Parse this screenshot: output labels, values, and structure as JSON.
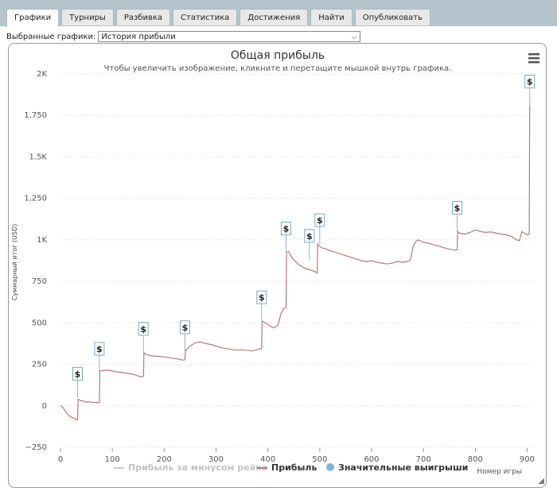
{
  "tabs": [
    {
      "label": "Графики",
      "active": true
    },
    {
      "label": "Турниры",
      "active": false
    },
    {
      "label": "Разбивка",
      "active": false
    },
    {
      "label": "Статистика",
      "active": false
    },
    {
      "label": "Достижения",
      "active": false
    },
    {
      "label": "Найти",
      "active": false
    },
    {
      "label": "Опубликовать",
      "active": false
    }
  ],
  "selector": {
    "label": "Выбранные графики:",
    "value": "История прибыли"
  },
  "colors": {
    "profit_line": "#b57a7a",
    "allin_line": "#cccccc",
    "big_win_marker": "#7cb5ec",
    "grid": "#e6e6e6"
  },
  "chart_data": {
    "type": "line",
    "title": "Общая прибыль",
    "subtitle": "Чтобы увеличить изображение, кликните и перетащите мышкой внутрь графика.",
    "xlabel": "Номер игры",
    "ylabel": "Суммарный итог (USD)",
    "xlim": [
      0,
      910
    ],
    "ylim": [
      -250,
      2000
    ],
    "x_ticks": [
      0,
      100,
      200,
      300,
      400,
      500,
      600,
      700,
      800,
      900
    ],
    "y_ticks": [
      {
        "value": -250,
        "label": "−250"
      },
      {
        "value": 0,
        "label": "0"
      },
      {
        "value": 250,
        "label": "250"
      },
      {
        "value": 500,
        "label": "500"
      },
      {
        "value": 750,
        "label": "750"
      },
      {
        "value": 1000,
        "label": "1K"
      },
      {
        "value": 1250,
        "label": "1,250"
      },
      {
        "value": 1500,
        "label": "1.5K"
      },
      {
        "value": 1750,
        "label": "1,750"
      },
      {
        "value": 2000,
        "label": "2K"
      }
    ],
    "grid": true,
    "legend_position": "bottom",
    "menu_icon": "hamburger-menu-icon",
    "series": [
      {
        "name": "Прибыль за минусом рейка",
        "visible": false,
        "values": []
      },
      {
        "name": "Прибыль",
        "visible": true,
        "points": [
          [
            0,
            0
          ],
          [
            5,
            -10
          ],
          [
            10,
            -35
          ],
          [
            15,
            -55
          ],
          [
            20,
            -65
          ],
          [
            25,
            -75
          ],
          [
            30,
            -82
          ],
          [
            33,
            -85
          ],
          [
            34,
            40
          ],
          [
            40,
            30
          ],
          [
            45,
            28
          ],
          [
            50,
            22
          ],
          [
            55,
            25
          ],
          [
            60,
            20
          ],
          [
            65,
            22
          ],
          [
            70,
            18
          ],
          [
            75,
            20
          ],
          [
            76,
            210
          ],
          [
            80,
            212
          ],
          [
            90,
            215
          ],
          [
            100,
            210
          ],
          [
            110,
            205
          ],
          [
            120,
            200
          ],
          [
            130,
            195
          ],
          [
            140,
            190
          ],
          [
            150,
            180
          ],
          [
            155,
            175
          ],
          [
            160,
            178
          ],
          [
            161,
            320
          ],
          [
            165,
            310
          ],
          [
            170,
            305
          ],
          [
            180,
            300
          ],
          [
            190,
            298
          ],
          [
            200,
            295
          ],
          [
            210,
            290
          ],
          [
            220,
            285
          ],
          [
            230,
            280
          ],
          [
            235,
            275
          ],
          [
            240,
            278
          ],
          [
            241,
            330
          ],
          [
            245,
            345
          ],
          [
            250,
            360
          ],
          [
            260,
            380
          ],
          [
            270,
            385
          ],
          [
            280,
            375
          ],
          [
            290,
            370
          ],
          [
            300,
            360
          ],
          [
            310,
            350
          ],
          [
            320,
            345
          ],
          [
            330,
            340
          ],
          [
            340,
            335
          ],
          [
            350,
            338
          ],
          [
            360,
            335
          ],
          [
            370,
            330
          ],
          [
            380,
            340
          ],
          [
            388,
            345
          ],
          [
            389,
            510
          ],
          [
            395,
            500
          ],
          [
            400,
            490
          ],
          [
            405,
            480
          ],
          [
            410,
            470
          ],
          [
            415,
            475
          ],
          [
            420,
            490
          ],
          [
            425,
            555
          ],
          [
            430,
            585
          ],
          [
            435,
            590
          ],
          [
            436,
            925
          ],
          [
            440,
            930
          ],
          [
            445,
            900
          ],
          [
            450,
            880
          ],
          [
            460,
            850
          ],
          [
            470,
            830
          ],
          [
            480,
            820
          ],
          [
            490,
            810
          ],
          [
            495,
            800
          ],
          [
            496,
            975
          ],
          [
            500,
            960
          ],
          [
            505,
            950
          ],
          [
            510,
            948
          ],
          [
            520,
            935
          ],
          [
            530,
            925
          ],
          [
            540,
            915
          ],
          [
            550,
            905
          ],
          [
            560,
            895
          ],
          [
            570,
            885
          ],
          [
            580,
            875
          ],
          [
            590,
            868
          ],
          [
            600,
            875
          ],
          [
            610,
            865
          ],
          [
            620,
            860
          ],
          [
            630,
            855
          ],
          [
            640,
            860
          ],
          [
            650,
            870
          ],
          [
            660,
            865
          ],
          [
            670,
            870
          ],
          [
            675,
            880
          ],
          [
            680,
            960
          ],
          [
            685,
            990
          ],
          [
            690,
            1000
          ],
          [
            700,
            985
          ],
          [
            710,
            980
          ],
          [
            720,
            970
          ],
          [
            730,
            962
          ],
          [
            740,
            952
          ],
          [
            750,
            945
          ],
          [
            760,
            938
          ],
          [
            765,
            940
          ],
          [
            766,
            1050
          ],
          [
            770,
            1040
          ],
          [
            780,
            1035
          ],
          [
            790,
            1045
          ],
          [
            800,
            1060
          ],
          [
            810,
            1050
          ],
          [
            820,
            1045
          ],
          [
            830,
            1048
          ],
          [
            840,
            1040
          ],
          [
            850,
            1035
          ],
          [
            860,
            1030
          ],
          [
            870,
            1020
          ],
          [
            880,
            1000
          ],
          [
            885,
            995
          ],
          [
            890,
            1050
          ],
          [
            895,
            1040
          ],
          [
            900,
            1030
          ],
          [
            904,
            1035
          ],
          [
            905,
            1810
          ]
        ]
      },
      {
        "name": "Значительные выигрыши",
        "visible": true,
        "markers": [
          {
            "x": 33,
            "y": 50,
            "label": "$"
          },
          {
            "x": 75,
            "y": 200,
            "label": "$"
          },
          {
            "x": 160,
            "y": 320,
            "label": "$"
          },
          {
            "x": 240,
            "y": 330,
            "label": "$"
          },
          {
            "x": 388,
            "y": 510,
            "label": "$"
          },
          {
            "x": 435,
            "y": 925,
            "label": "$"
          },
          {
            "x": 480,
            "y": 880,
            "label": "$"
          },
          {
            "x": 500,
            "y": 975,
            "label": "$"
          },
          {
            "x": 765,
            "y": 1050,
            "label": "$"
          },
          {
            "x": 905,
            "y": 1810,
            "label": "$"
          }
        ]
      }
    ]
  }
}
